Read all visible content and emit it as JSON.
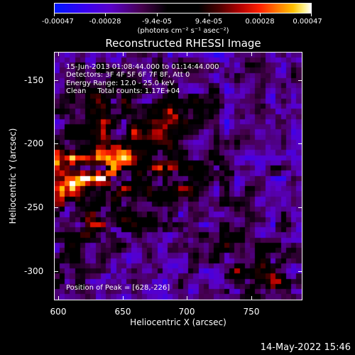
{
  "chart_data": {
    "type": "heatmap",
    "title": "Reconstructed RHESSI Image",
    "xlabel": "Heliocentric X (arcsec)",
    "ylabel": "Heliocentric Y (arcsec)",
    "xlim": [
      597,
      790
    ],
    "ylim": [
      -323,
      -130
    ],
    "x_ticks": [
      "600",
      "650",
      "700",
      "750"
    ],
    "y_ticks": [
      "-150",
      "-200",
      "-250",
      "-300"
    ],
    "colorbar": {
      "labels": [
        "-0.00047",
        "-0.00028",
        "-9.4e-05",
        "9.4e-05",
        "0.00028",
        "0.00047"
      ],
      "units": "(photons cm⁻² s⁻¹ asec⁻²)",
      "range": [
        -0.00047,
        0.00047
      ]
    },
    "annotations": {
      "time_range": "15-Jun-2013 01:08:44.000 to 01:14:44.000",
      "detectors": "Detectors: 3F 4F 5F 6F 7F 8F, Att 0",
      "energy": "Energy Range: 12.0 - 25.0 keV",
      "algorithm": "Clean     Total counts: 1.17E+04",
      "peak": "Position of Peak = [628,-226]"
    },
    "peak_position": [
      628,
      -226
    ],
    "emission_sources": [
      {
        "x": 628,
        "y": -226,
        "value": 0.00047
      },
      {
        "x": 606,
        "y": -218,
        "value": 0.00038
      },
      {
        "x": 652,
        "y": -200,
        "value": 0.00036
      },
      {
        "x": 614,
        "y": -250,
        "value": 0.00034
      },
      {
        "x": 660,
        "y": -230,
        "value": 0.0003
      },
      {
        "x": 690,
        "y": -175,
        "value": 0.0003
      },
      {
        "x": 700,
        "y": -225,
        "value": 0.00028
      },
      {
        "x": 640,
        "y": -160,
        "value": 0.00022
      },
      {
        "x": 660,
        "y": -260,
        "value": 0.0002
      },
      {
        "x": 765,
        "y": -305,
        "value": 0.0003
      },
      {
        "x": 735,
        "y": -290,
        "value": 0.00018
      },
      {
        "x": 610,
        "y": -285,
        "value": 0.00018
      }
    ]
  },
  "footer": {
    "datetime": "14-May-2022 15:46"
  },
  "colors": {
    "background": "#000000",
    "foreground": "#ffffff"
  }
}
